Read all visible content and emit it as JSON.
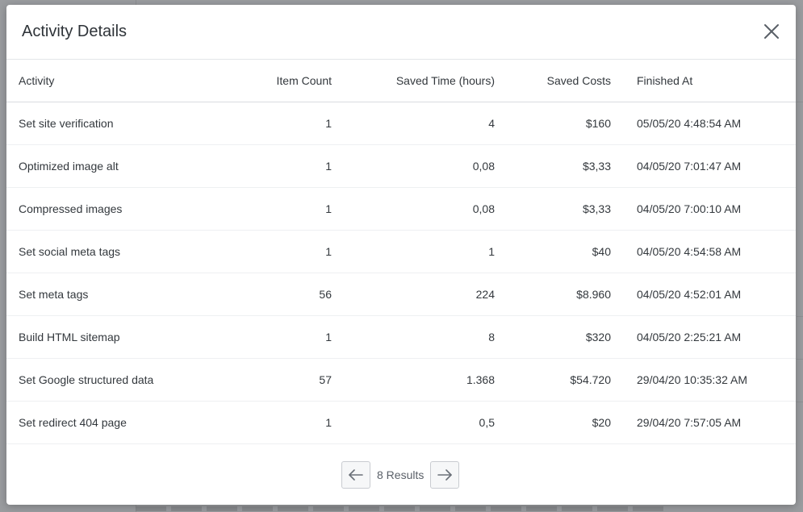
{
  "modal": {
    "title": "Activity Details",
    "close_icon": "close-icon"
  },
  "table": {
    "columns": {
      "activity": "Activity",
      "item_count": "Item Count",
      "saved_time": "Saved Time (hours)",
      "saved_costs": "Saved Costs",
      "finished_at": "Finished At"
    },
    "rows": [
      {
        "activity": "Set site verification",
        "item_count": "1",
        "saved_time": "4",
        "saved_costs": "$160",
        "finished_at": "05/05/20 4:48:54 AM"
      },
      {
        "activity": "Optimized image alt",
        "item_count": "1",
        "saved_time": "0,08",
        "saved_costs": "$3,33",
        "finished_at": "04/05/20 7:01:47 AM"
      },
      {
        "activity": "Compressed images",
        "item_count": "1",
        "saved_time": "0,08",
        "saved_costs": "$3,33",
        "finished_at": "04/05/20 7:00:10 AM"
      },
      {
        "activity": "Set social meta tags",
        "item_count": "1",
        "saved_time": "1",
        "saved_costs": "$40",
        "finished_at": "04/05/20 4:54:58 AM"
      },
      {
        "activity": "Set meta tags",
        "item_count": "56",
        "saved_time": "224",
        "saved_costs": "$8.960",
        "finished_at": "04/05/20 4:52:01 AM"
      },
      {
        "activity": "Build HTML sitemap",
        "item_count": "1",
        "saved_time": "8",
        "saved_costs": "$320",
        "finished_at": "04/05/20 2:25:21 AM"
      },
      {
        "activity": "Set Google structured data",
        "item_count": "57",
        "saved_time": "1.368",
        "saved_costs": "$54.720",
        "finished_at": "29/04/20 10:35:32 AM"
      },
      {
        "activity": "Set redirect 404 page",
        "item_count": "1",
        "saved_time": "0,5",
        "saved_costs": "$20",
        "finished_at": "29/04/20 7:57:05 AM"
      }
    ]
  },
  "pagination": {
    "results_label": "8 Results",
    "prev_icon": "arrow-left-icon",
    "next_icon": "arrow-right-icon"
  },
  "colors": {
    "text": "#33383d",
    "border": "#d9dce0",
    "overlay": "#8a8c90",
    "icon": "#5a6068"
  }
}
